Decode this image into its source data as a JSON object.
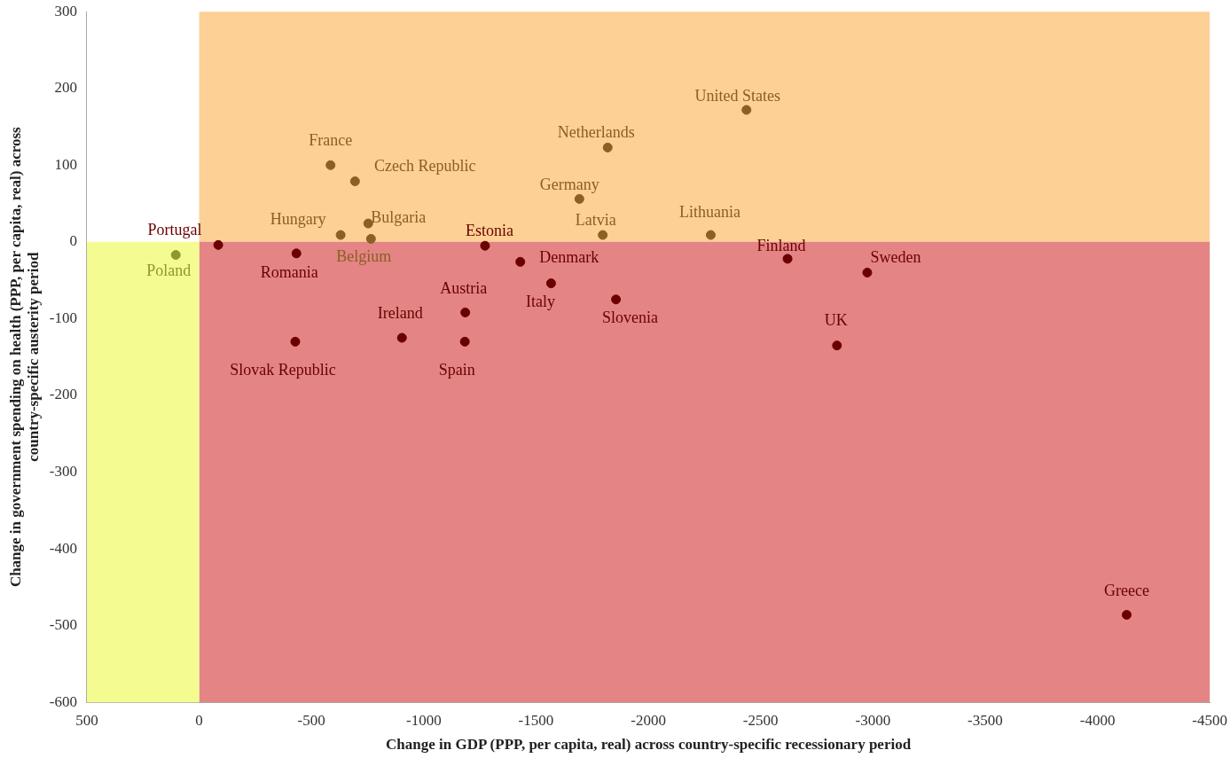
{
  "chart_data": {
    "type": "scatter",
    "xlabel": "Change in GDP (PPP, per capita, real) across country-specific recessionary period",
    "ylabel": "Change in government spending on health (PPP, per capita, real) across\ncountry-specific austerity period",
    "xlim": [
      500,
      -4500
    ],
    "xticks": [
      500,
      0,
      -500,
      -1000,
      -1500,
      -2000,
      -2500,
      -3000,
      -3500,
      -4000,
      -4500
    ],
    "ylim": [
      -600,
      300
    ],
    "yticks": [
      -600,
      -500,
      -400,
      -300,
      -200,
      -100,
      0,
      100,
      200,
      300
    ],
    "grid": false,
    "legend": false,
    "marker": "circle",
    "x": [
      104,
      -85,
      -585,
      -694,
      -630,
      -753,
      -765,
      -433,
      -1273,
      -1430,
      -1567,
      -1185,
      -1183,
      -903,
      -428,
      -1819,
      -1693,
      -1797,
      -1856,
      -2437,
      -2278,
      -2620,
      -2975,
      -2840,
      -4130
    ],
    "series": [
      {
        "values": [
          -17,
          -4,
          100,
          79,
          9,
          24,
          4,
          -15,
          -5,
          -26,
          -54,
          -92,
          -130,
          -125,
          -130,
          123,
          56,
          9,
          -75,
          172,
          9,
          -22,
          -40,
          -135,
          -486
        ],
        "colors": [
          "#8a9a30",
          "#6b0000",
          "#8b6020",
          "#8b6020",
          "#8b6020",
          "#8b6020",
          "#8b6020",
          "#6b0000",
          "#6b0000",
          "#6b0000",
          "#6b0000",
          "#6b0000",
          "#6b0000",
          "#6b0000",
          "#6b0000",
          "#8b6020",
          "#8b6020",
          "#8b6020",
          "#6b0000",
          "#8b6020",
          "#8b6020",
          "#6b0000",
          "#6b0000",
          "#6b0000",
          "#6b0000"
        ]
      }
    ],
    "annotations": [
      {
        "text": "Poland",
        "x": 104,
        "y": -17
      },
      {
        "text": "Portugal",
        "x": -85,
        "y": -4
      },
      {
        "text": "France",
        "x": -585,
        "y": 100
      },
      {
        "text": "Czech Republic",
        "x": -694,
        "y": 79
      },
      {
        "text": "Hungary",
        "x": -630,
        "y": 9
      },
      {
        "text": "Bulgaria",
        "x": -753,
        "y": 24
      },
      {
        "text": "Belgium",
        "x": -765,
        "y": 4
      },
      {
        "text": "Romania",
        "x": -433,
        "y": -15
      },
      {
        "text": "Estonia",
        "x": -1273,
        "y": -5
      },
      {
        "text": "Denmark",
        "x": -1430,
        "y": -26
      },
      {
        "text": "Italy",
        "x": -1567,
        "y": -54
      },
      {
        "text": "Austria",
        "x": -1185,
        "y": -92
      },
      {
        "text": "Spain",
        "x": -1183,
        "y": -130
      },
      {
        "text": "Ireland",
        "x": -903,
        "y": -125
      },
      {
        "text": "Slovak Republic",
        "x": -428,
        "y": -130
      },
      {
        "text": "Netherlands",
        "x": -1819,
        "y": 123
      },
      {
        "text": "Germany",
        "x": -1693,
        "y": 56
      },
      {
        "text": "Latvia",
        "x": -1797,
        "y": 9
      },
      {
        "text": "Slovenia",
        "x": -1856,
        "y": -75
      },
      {
        "text": "United States",
        "x": -2437,
        "y": 172
      },
      {
        "text": "Lithuania",
        "x": -2278,
        "y": 9
      },
      {
        "text": "Finland",
        "x": -2620,
        "y": -22
      },
      {
        "text": "Sweden",
        "x": -2975,
        "y": -40
      },
      {
        "text": "UK",
        "x": -2840,
        "y": -135
      },
      {
        "text": "Greece",
        "x": -4130,
        "y": -486
      }
    ],
    "bands": [
      {
        "axis": "y",
        "from": 0,
        "to": 300,
        "color": "#fdd095"
      },
      {
        "axis": "y",
        "from": -600,
        "to": 0,
        "color": "#e48485"
      },
      {
        "axis": "x",
        "from": 500,
        "to": 0,
        "color": "#f4fb90"
      }
    ]
  }
}
